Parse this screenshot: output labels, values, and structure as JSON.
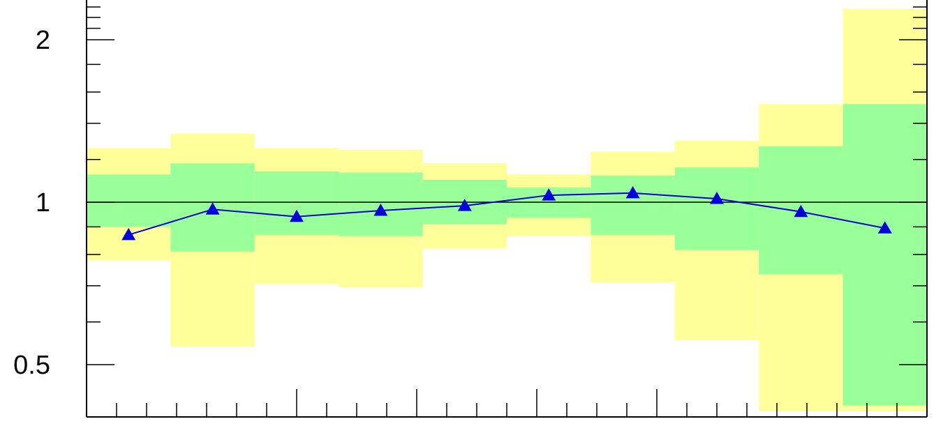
{
  "chart_data": {
    "type": "area",
    "title": "",
    "xlabel": "",
    "ylabel": "",
    "y_scale": "log",
    "xlim": [
      0.05,
      1.45
    ],
    "ylim": [
      0.4,
      2.3
    ],
    "x_ticks": [
      0.4,
      0.6,
      0.8,
      1
    ],
    "y_ticks": [
      {
        "value": 0.5,
        "label": "0.5"
      },
      {
        "value": 1,
        "label": "1"
      },
      {
        "value": 2,
        "label": "2"
      }
    ],
    "reference_line": 1,
    "bin_edges": [
      0.05,
      0.25,
      0.45,
      0.65,
      0.85,
      1.05,
      1.25,
      1.45
    ],
    "bins": [
      {
        "x0": 0.25,
        "x1": 0.33
      },
      {
        "x0": 0.33,
        "x1": 0.41
      },
      {
        "x0": 0.41,
        "x1": 0.49
      },
      {
        "x0": 0.49,
        "x1": 0.57
      },
      {
        "x0": 0.57,
        "x1": 0.65
      },
      {
        "x0": 0.65,
        "x1": 0.73
      },
      {
        "x0": 0.73,
        "x1": 0.81
      },
      {
        "x0": 0.81,
        "x1": 0.89
      },
      {
        "x0": 0.89,
        "x1": 0.97
      },
      {
        "x0": 0.97,
        "x1": 1.05
      }
    ],
    "series": [
      {
        "values": [
          0.87,
          0.97,
          0.94,
          0.965,
          0.985,
          1.03,
          1.04,
          1.015,
          0.96,
          0.895
        ]
      },
      {
        "color": "#99ff99",
        "lower": [
          0.9,
          0.81,
          0.87,
          0.865,
          0.91,
          0.935,
          0.87,
          0.815,
          0.735,
          0.42
        ],
        "upper": [
          1.125,
          1.18,
          1.14,
          1.135,
          1.1,
          1.065,
          1.12,
          1.16,
          1.27,
          1.52
        ]
      },
      {
        "color": "#ffff99",
        "lower": [
          0.78,
          0.54,
          0.705,
          0.695,
          0.82,
          0.865,
          0.71,
          0.555,
          0.41,
          0.41
        ],
        "upper": [
          1.26,
          1.34,
          1.26,
          1.25,
          1.18,
          1.125,
          1.24,
          1.3,
          1.52,
          2.28
        ]
      }
    ]
  },
  "colors": {
    "line": "#0000cc",
    "marker": "#0000dd",
    "green_band": "#99ff99",
    "yellow_band": "#ffff99",
    "axis": "#000000"
  }
}
